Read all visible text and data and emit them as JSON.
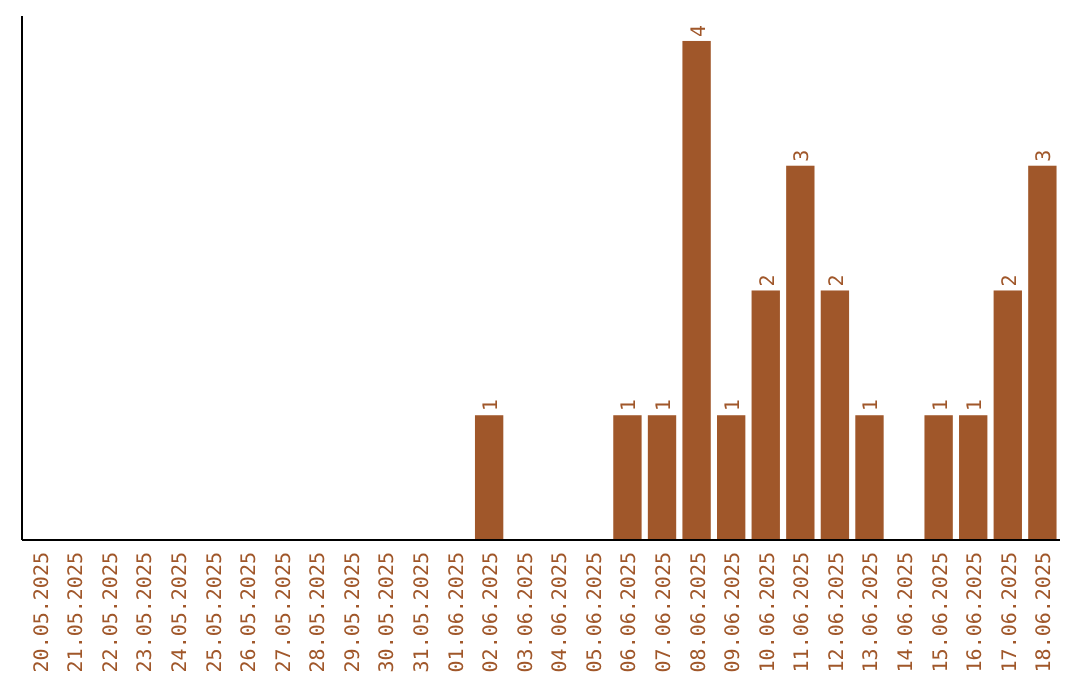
{
  "chart_data": {
    "type": "bar",
    "categories": [
      "20.05.2025",
      "21.05.2025",
      "22.05.2025",
      "23.05.2025",
      "24.05.2025",
      "25.05.2025",
      "26.05.2025",
      "27.05.2025",
      "28.05.2025",
      "29.05.2025",
      "30.05.2025",
      "31.05.2025",
      "01.06.2025",
      "02.06.2025",
      "03.06.2025",
      "04.06.2025",
      "05.06.2025",
      "06.06.2025",
      "07.06.2025",
      "08.06.2025",
      "09.06.2025",
      "10.06.2025",
      "11.06.2025",
      "12.06.2025",
      "13.06.2025",
      "14.06.2025",
      "15.06.2025",
      "16.06.2025",
      "17.06.2025",
      "18.06.2025"
    ],
    "values": [
      null,
      null,
      null,
      null,
      null,
      null,
      null,
      null,
      null,
      null,
      null,
      null,
      null,
      1,
      null,
      null,
      null,
      1,
      1,
      4,
      1,
      2,
      3,
      2,
      1,
      null,
      1,
      1,
      2,
      3
    ],
    "color": "#a0572a",
    "data_labels": true
  }
}
